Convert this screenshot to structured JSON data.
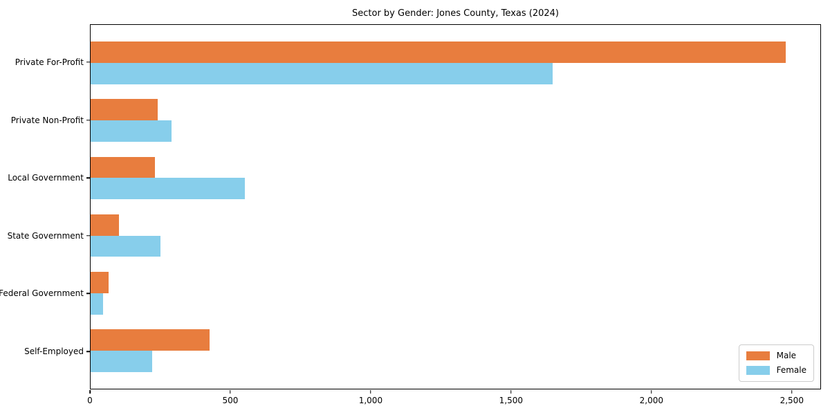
{
  "chart_data": {
    "type": "bar",
    "orientation": "horizontal",
    "title": "Sector by Gender: Jones County, Texas (2024)",
    "categories": [
      "Private For-Profit",
      "Private Non-Profit",
      "Local Government",
      "State Government",
      "Federal Government",
      "Self-Employed"
    ],
    "series": [
      {
        "name": "Male",
        "color": "#e87d3e",
        "values": [
          2480,
          240,
          230,
          100,
          65,
          425
        ]
      },
      {
        "name": "Female",
        "color": "#87ceeb",
        "values": [
          1650,
          290,
          550,
          250,
          45,
          220
        ]
      }
    ],
    "xlabel": "",
    "ylabel": "",
    "xlim": [
      0,
      2604
    ],
    "x_ticks": [
      0,
      500,
      1000,
      1500,
      2000,
      2500
    ],
    "x_tick_labels": [
      "0",
      "500",
      "1,000",
      "1,500",
      "2,000",
      "2,500"
    ],
    "grid": false,
    "legend": {
      "position": "lower right",
      "entries": [
        "Male",
        "Female"
      ]
    }
  }
}
